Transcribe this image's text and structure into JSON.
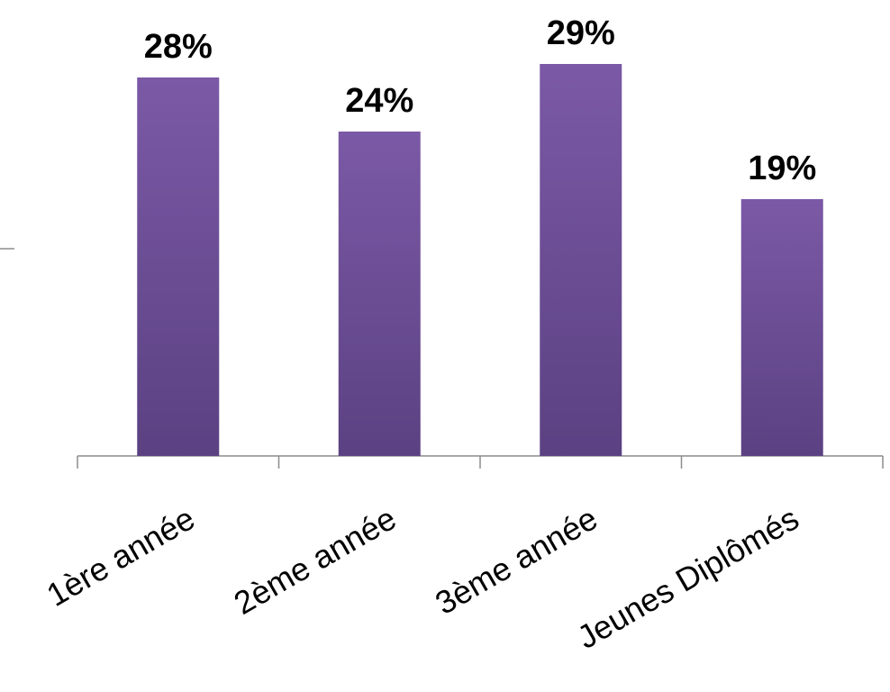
{
  "chart_data": {
    "type": "bar",
    "categories": [
      "1ère année",
      "2ème année",
      "3ème année",
      "Jeunes Diplômés"
    ],
    "values": [
      28,
      24,
      29,
      19
    ],
    "value_labels": [
      "28%",
      "24%",
      "29%",
      "19%"
    ],
    "ylim": [
      0,
      30
    ],
    "grid": false,
    "legend": "none",
    "colors": {
      "bar_top": "#7b59a6",
      "bar_bottom": "#5b4182",
      "axis": "#8c8c8c"
    }
  }
}
